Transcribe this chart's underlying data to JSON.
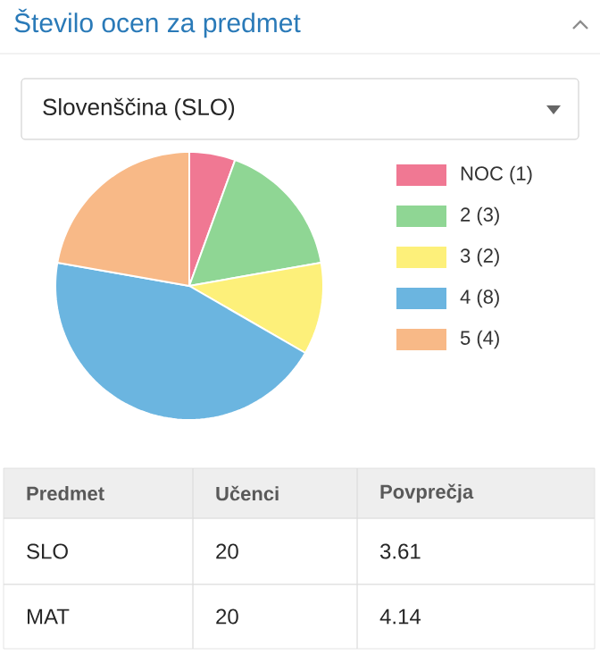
{
  "chart_data": [
    {
      "type": "pie",
      "title": "Število ocen za predmet",
      "subtitle": "Slovenščina (SLO)",
      "categories": [
        "NOC (1)",
        "2 (3)",
        "3 (2)",
        "4 (8)",
        "5 (4)"
      ],
      "values": [
        1,
        3,
        2,
        8,
        4
      ],
      "colors": [
        "#f07893",
        "#8fd694",
        "#fdf07a",
        "#6bb5e0",
        "#f8b987"
      ],
      "legend": "right"
    },
    {
      "type": "other",
      "annotations": [
        "Predmet",
        "Učenci",
        "Povprečja",
        "SLO",
        "20",
        "3.61",
        "MAT",
        "20",
        "4.14"
      ]
    }
  ]
}
